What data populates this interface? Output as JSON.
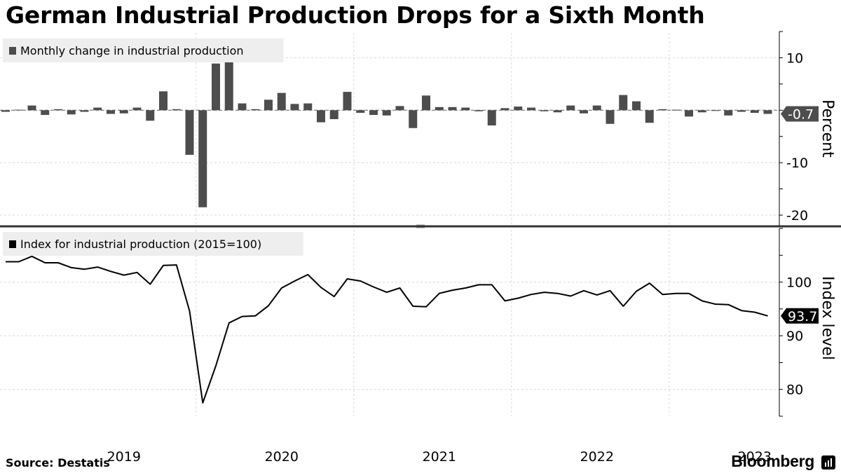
{
  "title": "German Industrial Production Drops for a Sixth Month",
  "source": "Source:  Destatis",
  "brand": "Bloomberg",
  "brand_icon": "bloomberg-terminal-icon",
  "colors": {
    "bars": "#4d4d4d",
    "line": "#000000",
    "grid": "#d9d9d9",
    "divider": "#333333"
  },
  "chart_data": [
    {
      "type": "bar",
      "legend": "Monthly change in industrial production",
      "ylabel": "Percent",
      "ylim": [
        -22,
        15
      ],
      "yticks": [
        10,
        -10,
        -20
      ],
      "grid": true,
      "latest_label": "-0.7",
      "x": [
        "2018-10",
        "2018-11",
        "2018-12",
        "2019-01",
        "2019-02",
        "2019-03",
        "2019-04",
        "2019-05",
        "2019-06",
        "2019-07",
        "2019-08",
        "2019-09",
        "2019-10",
        "2019-11",
        "2019-12",
        "2020-01",
        "2020-02",
        "2020-03",
        "2020-04",
        "2020-05",
        "2020-06",
        "2020-07",
        "2020-08",
        "2020-09",
        "2020-10",
        "2020-11",
        "2020-12",
        "2021-01",
        "2021-02",
        "2021-03",
        "2021-04",
        "2021-05",
        "2021-06",
        "2021-07",
        "2021-08",
        "2021-09",
        "2021-10",
        "2021-11",
        "2021-12",
        "2022-01",
        "2022-02",
        "2022-03",
        "2022-04",
        "2022-05",
        "2022-06",
        "2022-07",
        "2022-08",
        "2022-09",
        "2022-10",
        "2022-11",
        "2022-12",
        "2023-01",
        "2023-02",
        "2023-03",
        "2023-04",
        "2023-05",
        "2023-06",
        "2023-07",
        "2023-08"
      ],
      "values": [
        -0.3,
        0.1,
        0.9,
        -0.9,
        0.2,
        -0.8,
        -0.3,
        0.5,
        -0.7,
        -0.6,
        0.5,
        -2.0,
        3.6,
        0.2,
        -8.5,
        -18.5,
        8.9,
        10.0,
        1.3,
        0.2,
        2.0,
        3.3,
        1.2,
        1.3,
        -2.3,
        -1.7,
        3.5,
        -0.5,
        -0.9,
        -1.0,
        0.8,
        -3.4,
        2.8,
        0.6,
        0.6,
        0.5,
        -0.2,
        -2.9,
        0.4,
        0.7,
        0.5,
        -0.2,
        -0.4,
        0.9,
        -0.6,
        0.9,
        -2.6,
        2.9,
        1.7,
        -2.4,
        0.2,
        0.1,
        -1.2,
        -0.4,
        -0.1,
        -1.0,
        -0.3,
        -0.5,
        -0.7
      ]
    },
    {
      "type": "line",
      "legend": "Index for industrial production (2015=100)",
      "ylabel": "Index level",
      "ylim": [
        75,
        110
      ],
      "yticks": [
        100,
        90,
        80
      ],
      "grid": true,
      "latest_label": "93.7",
      "x": [
        "2018-10",
        "2018-11",
        "2018-12",
        "2019-01",
        "2019-02",
        "2019-03",
        "2019-04",
        "2019-05",
        "2019-06",
        "2019-07",
        "2019-08",
        "2019-09",
        "2019-10",
        "2019-11",
        "2019-12",
        "2020-01",
        "2020-02",
        "2020-03",
        "2020-04",
        "2020-05",
        "2020-06",
        "2020-07",
        "2020-08",
        "2020-09",
        "2020-10",
        "2020-11",
        "2020-12",
        "2021-01",
        "2021-02",
        "2021-03",
        "2021-04",
        "2021-05",
        "2021-06",
        "2021-07",
        "2021-08",
        "2021-09",
        "2021-10",
        "2021-11",
        "2021-12",
        "2022-01",
        "2022-02",
        "2022-03",
        "2022-04",
        "2022-05",
        "2022-06",
        "2022-07",
        "2022-08",
        "2022-09",
        "2022-10",
        "2022-11",
        "2022-12",
        "2023-01",
        "2023-02",
        "2023-03",
        "2023-04",
        "2023-05",
        "2023-06",
        "2023-07",
        "2023-08"
      ],
      "values": [
        103.8,
        103.8,
        104.8,
        103.6,
        103.6,
        102.7,
        102.4,
        102.8,
        102.0,
        101.3,
        101.8,
        99.6,
        103.1,
        103.2,
        94.6,
        77.5,
        84.4,
        92.4,
        93.6,
        93.7,
        95.6,
        98.9,
        100.2,
        101.4,
        99.0,
        97.3,
        100.6,
        100.2,
        99.1,
        98.1,
        98.9,
        95.5,
        95.4,
        97.9,
        98.5,
        98.9,
        99.5,
        99.5,
        96.5,
        97.0,
        97.7,
        98.1,
        97.9,
        97.4,
        98.4,
        97.6,
        98.4,
        95.5,
        98.3,
        99.8,
        97.7,
        97.9,
        97.9,
        96.5,
        95.9,
        95.8,
        94.7,
        94.4,
        93.7
      ]
    }
  ],
  "x_axis": {
    "tick_labels": [
      {
        "label": "2019",
        "date": "2019-07"
      },
      {
        "label": "2020",
        "date": "2020-07"
      },
      {
        "label": "2021",
        "date": "2021-07"
      },
      {
        "label": "2022",
        "date": "2022-07"
      },
      {
        "label": "2023",
        "date": "2023-07"
      }
    ],
    "gridlines": [
      "2020-01",
      "2021-01",
      "2022-01",
      "2023-01"
    ]
  }
}
